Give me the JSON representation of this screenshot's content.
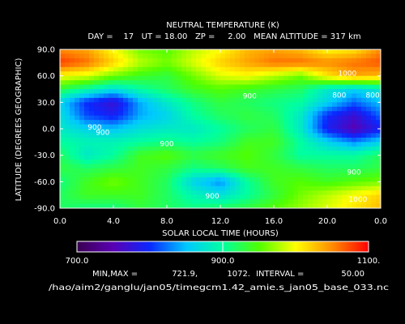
{
  "chart_data": {
    "type": "heatmap",
    "title": "NEUTRAL TEMPERATURE (K)",
    "subtitle": "DAY =    17   UT = 18.00   ZP =     2.00   MEAN ALTITUDE = 317 km",
    "xlabel": "SOLAR LOCAL TIME (HOURS)",
    "ylabel": "LATITUDE (DEGREES GEOGRAPHIC)",
    "xlim": [
      0,
      24
    ],
    "ylim": [
      -90,
      90
    ],
    "x_ticks": [
      "0.0",
      "4.0",
      "8.0",
      "12.0",
      "16.0",
      "20.0",
      "0.0"
    ],
    "y_ticks": [
      "90.0",
      "60.0",
      "30.0",
      "0.0",
      "-30.0",
      "-60.0",
      "-90.0"
    ],
    "x": [
      0,
      2,
      4,
      6,
      8,
      10,
      12,
      14,
      16,
      18,
      20,
      22,
      24
    ],
    "y": [
      90,
      75,
      60,
      45,
      30,
      15,
      0,
      -15,
      -30,
      -45,
      -60,
      -75,
      -90
    ],
    "z": [
      [
        1050,
        1040,
        1000,
        960,
        950,
        980,
        1000,
        1030,
        1040,
        1030,
        1000,
        1010,
        1050
      ],
      [
        1080,
        1060,
        1020,
        980,
        960,
        990,
        1020,
        1040,
        1060,
        1060,
        1050,
        1060,
        1070
      ],
      [
        1000,
        990,
        960,
        940,
        930,
        960,
        990,
        1000,
        980,
        960,
        1010,
        1040,
        1030
      ],
      [
        930,
        900,
        870,
        900,
        920,
        940,
        950,
        940,
        930,
        920,
        880,
        860,
        880
      ],
      [
        860,
        800,
        770,
        840,
        880,
        910,
        930,
        920,
        910,
        900,
        860,
        820,
        850
      ],
      [
        870,
        810,
        790,
        840,
        860,
        900,
        920,
        930,
        920,
        880,
        800,
        770,
        820
      ],
      [
        880,
        860,
        850,
        870,
        880,
        880,
        900,
        920,
        930,
        880,
        790,
        750,
        790
      ],
      [
        900,
        890,
        890,
        900,
        910,
        900,
        910,
        940,
        940,
        900,
        860,
        830,
        860
      ],
      [
        920,
        880,
        900,
        940,
        950,
        930,
        940,
        950,
        930,
        900,
        900,
        900,
        920
      ],
      [
        930,
        920,
        930,
        940,
        930,
        910,
        920,
        940,
        940,
        930,
        920,
        920,
        930
      ],
      [
        910,
        940,
        960,
        940,
        920,
        860,
        830,
        900,
        940,
        950,
        940,
        950,
        960
      ],
      [
        920,
        940,
        940,
        940,
        920,
        890,
        870,
        900,
        930,
        960,
        980,
        1000,
        1020
      ],
      [
        920,
        910,
        910,
        930,
        920,
        910,
        920,
        930,
        950,
        970,
        990,
        1010,
        1030
      ]
    ],
    "contour_labels": [
      "1000",
      "900",
      "800",
      "900",
      "800",
      "900",
      "900",
      "900",
      "900",
      "1000"
    ],
    "colorbar": {
      "min": 700,
      "max": 1100,
      "tick_labels": [
        "700.0",
        "900.0",
        "1100."
      ],
      "colors": [
        "#3a0050",
        "#5a00b4",
        "#0a28ff",
        "#00c8ff",
        "#00ffa0",
        "#50ff00",
        "#ffff00",
        "#ff8c00",
        "#ff0000"
      ]
    },
    "stats": {
      "minmax_label": "MIN,MAX =",
      "min": "721.9,",
      "max": "1072.",
      "interval_label": "INTERVAL =",
      "interval": "50.00"
    },
    "source_path": "/hao/aim2/ganglu/jan05/timegcm1.42_amie.s_jan05_base_033.nc",
    "grid": false
  }
}
